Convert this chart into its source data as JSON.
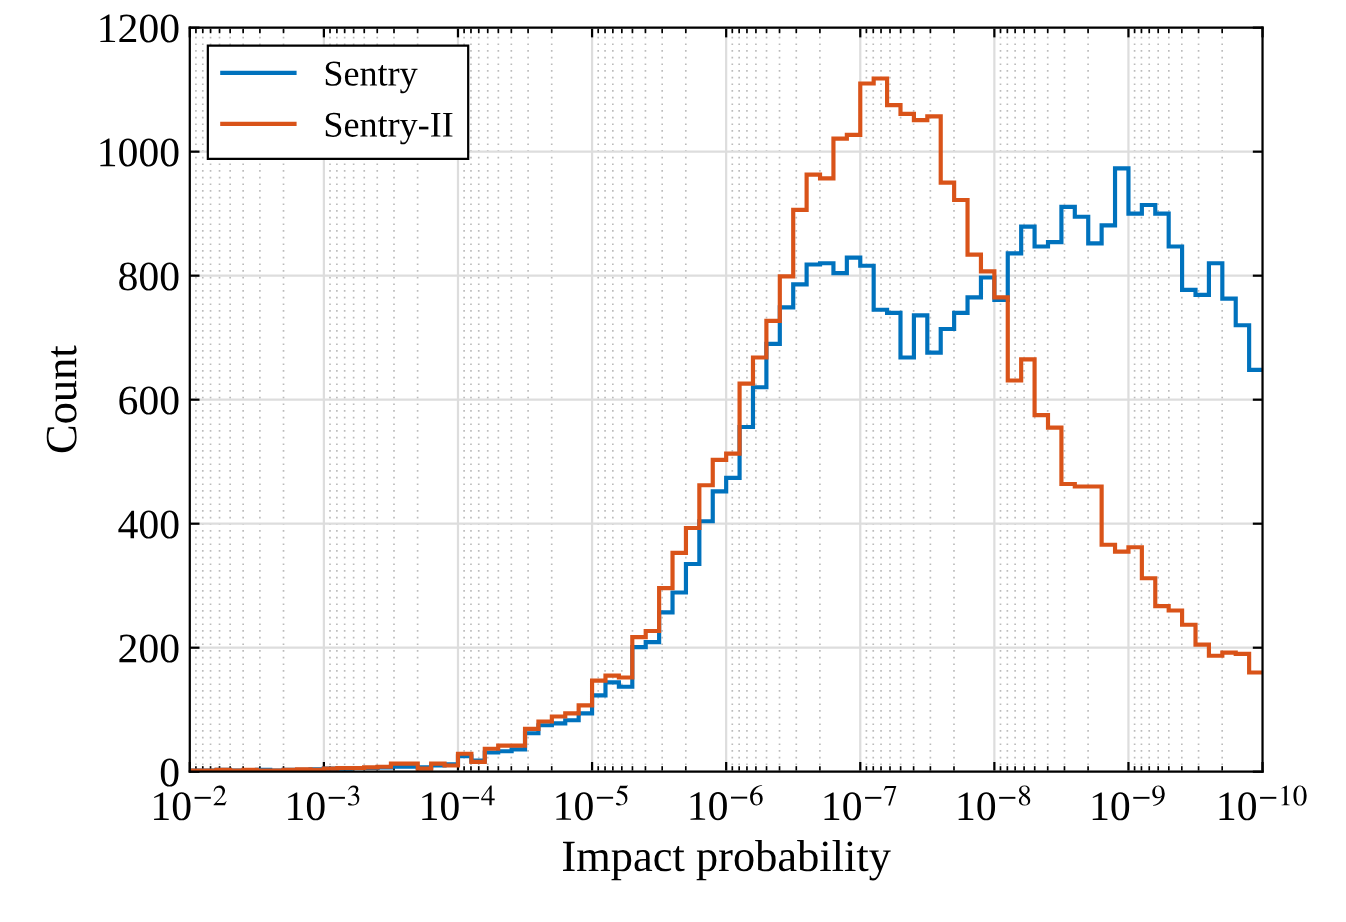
{
  "chart_data": {
    "type": "histogram",
    "xlabel": "Impact probability",
    "ylabel": "Count",
    "bins": [
      0.01,
      0.007943,
      0.00631,
      0.005012,
      0.003981,
      0.003162,
      0.002512,
      0.001995,
      0.001585,
      0.001259,
      0.001,
      0.0007943,
      0.000631,
      0.0005012,
      0.0003981,
      0.0003162,
      0.0002512,
      0.0001995,
      0.0001585,
      0.0001259,
      0.0001,
      7.943e-05,
      6.31e-05,
      5.012e-05,
      3.981e-05,
      3.162e-05,
      2.512e-05,
      1.995e-05,
      1.585e-05,
      1.259e-05,
      1e-05,
      7.943e-06,
      6.31e-06,
      5.012e-06,
      3.981e-06,
      3.162e-06,
      2.512e-06,
      1.995e-06,
      1.585e-06,
      1.259e-06,
      1e-06,
      7.943e-07,
      6.31e-07,
      5.012e-07,
      3.981e-07,
      3.162e-07,
      2.512e-07,
      1.995e-07,
      1.585e-07,
      1.259e-07,
      1e-07,
      7.943e-08,
      6.31e-08,
      5.012e-08,
      3.981e-08,
      3.162e-08,
      2.512e-08,
      1.995e-08,
      1.585e-08,
      1.259e-08,
      1e-08,
      7.943e-09,
      6.31e-09,
      5.012e-09,
      3.981e-09,
      3.162e-09,
      2.512e-09,
      1.995e-09,
      1.585e-09,
      1.259e-09,
      1e-09,
      7.943e-10,
      6.31e-10,
      5.012e-10,
      3.981e-10,
      3.162e-10,
      2.512e-10,
      1.995e-10,
      1.585e-10,
      1.259e-10,
      1e-10
    ],
    "series": [
      {
        "name": "Sentry",
        "color": "#0072bd",
        "values": [
          2,
          2,
          3,
          2,
          2,
          3,
          2,
          3,
          3,
          4,
          5,
          5,
          6,
          6,
          7,
          8,
          8,
          7,
          10,
          12,
          25,
          18,
          31,
          33,
          36,
          62,
          75,
          78,
          83,
          94,
          123,
          144,
          137,
          201,
          209,
          257,
          289,
          335,
          404,
          452,
          474,
          556,
          620,
          690,
          749,
          786,
          818,
          820,
          804,
          829,
          816,
          745,
          740,
          668,
          736,
          676,
          714,
          740,
          765,
          797,
          761,
          836,
          879,
          847,
          854,
          911,
          895,
          852,
          881,
          973,
          900,
          914,
          900,
          847,
          777,
          769,
          820,
          763,
          720,
          648
        ]
      },
      {
        "name": "Sentry-II",
        "color": "#d95319",
        "values": [
          2,
          2,
          3,
          2,
          3,
          2,
          2,
          3,
          4,
          3,
          5,
          6,
          6,
          7,
          8,
          13,
          13,
          5,
          13,
          10,
          29,
          16,
          37,
          42,
          42,
          69,
          81,
          89,
          94,
          107,
          147,
          155,
          152,
          217,
          227,
          296,
          353,
          393,
          462,
          503,
          513,
          626,
          668,
          727,
          799,
          906,
          963,
          957,
          1021,
          1027,
          1110,
          1118,
          1075,
          1061,
          1051,
          1057,
          950,
          922,
          834,
          807,
          765,
          631,
          665,
          575,
          555,
          464,
          460,
          460,
          366,
          355,
          362,
          312,
          267,
          260,
          237,
          205,
          187,
          192,
          190,
          160
        ]
      }
    ],
    "log": "x",
    "xlim": [
      0.01,
      1e-10
    ],
    "xticks": [
      {
        "value": 0.01,
        "label": "10$^{−2}$"
      },
      {
        "value": 0.001,
        "label": "10$^{−3}$"
      },
      {
        "value": 0.0001,
        "label": "10$^{−4}$"
      },
      {
        "value": 1e-05,
        "label": "10$^{−5}$"
      },
      {
        "value": 1e-06,
        "label": "10$^{−6}$"
      },
      {
        "value": 1e-07,
        "label": "10$^{−7}$"
      },
      {
        "value": 1e-08,
        "label": "10$^{−8}$"
      },
      {
        "value": 1e-09,
        "label": "10$^{−9}$"
      },
      {
        "value": 1e-10,
        "label": "10$^{−10}$"
      }
    ],
    "ylim": [
      0,
      1200
    ],
    "yticks": [
      0,
      200,
      400,
      600,
      800,
      1000,
      1200
    ],
    "grid": true,
    "legend": "top left"
  }
}
